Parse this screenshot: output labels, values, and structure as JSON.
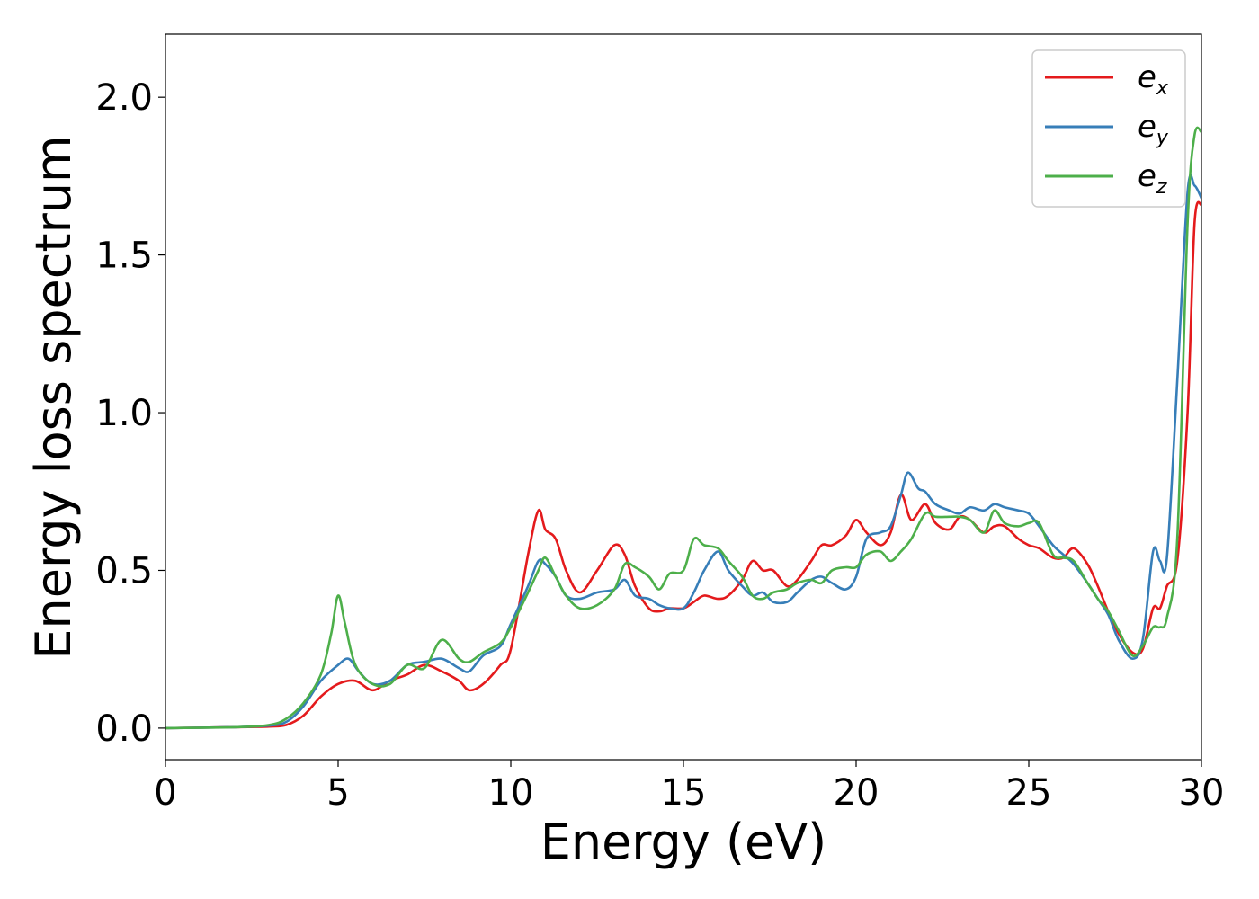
{
  "chart_data": {
    "type": "line",
    "title": "",
    "xlabel": "Energy (eV)",
    "ylabel": "Energy loss spectrum",
    "xlim": [
      0,
      30
    ],
    "ylim": [
      -0.1,
      2.2
    ],
    "xticks": [
      0,
      5,
      10,
      15,
      20,
      25,
      30
    ],
    "xtick_labels": [
      "0",
      "5",
      "10",
      "15",
      "20",
      "25",
      "30"
    ],
    "yticks": [
      0.0,
      0.5,
      1.0,
      1.5,
      2.0
    ],
    "ytick_labels": [
      "0.0",
      "0.5",
      "1.0",
      "1.5",
      "2.0"
    ],
    "grid": false,
    "legend_position": "top-right",
    "series": [
      {
        "name": "e_x",
        "label_main": "e",
        "label_sub": "x",
        "color": "#e41a1c",
        "x": [
          0,
          2,
          3,
          3.5,
          4,
          4.5,
          5,
          5.5,
          6,
          6.5,
          7,
          7.5,
          8,
          8.5,
          8.8,
          9.2,
          9.7,
          10,
          10.5,
          10.8,
          11,
          11.3,
          11.6,
          12,
          12.5,
          13,
          13.3,
          13.6,
          14,
          14.3,
          14.6,
          15,
          15.3,
          15.6,
          16,
          16.3,
          16.7,
          17,
          17.3,
          17.6,
          18,
          18.3,
          18.7,
          19,
          19.3,
          19.7,
          20,
          20.3,
          20.7,
          21,
          21.3,
          21.6,
          22,
          22.3,
          22.7,
          23,
          23.3,
          23.7,
          24,
          24.3,
          24.7,
          25,
          25.3,
          25.7,
          26,
          26.3,
          26.7,
          27,
          27.3,
          27.6,
          28,
          28.3,
          28.6,
          28.8,
          29,
          29.3,
          29.6,
          29.8,
          30
        ],
        "y": [
          0.0,
          0.003,
          0.005,
          0.01,
          0.04,
          0.1,
          0.14,
          0.15,
          0.12,
          0.15,
          0.17,
          0.2,
          0.18,
          0.15,
          0.12,
          0.14,
          0.2,
          0.25,
          0.55,
          0.69,
          0.63,
          0.6,
          0.5,
          0.43,
          0.5,
          0.58,
          0.55,
          0.45,
          0.38,
          0.37,
          0.38,
          0.38,
          0.4,
          0.42,
          0.41,
          0.42,
          0.47,
          0.53,
          0.5,
          0.5,
          0.45,
          0.47,
          0.53,
          0.58,
          0.58,
          0.61,
          0.66,
          0.62,
          0.58,
          0.62,
          0.74,
          0.66,
          0.71,
          0.65,
          0.63,
          0.67,
          0.66,
          0.62,
          0.64,
          0.64,
          0.6,
          0.58,
          0.57,
          0.54,
          0.54,
          0.57,
          0.52,
          0.45,
          0.37,
          0.3,
          0.24,
          0.25,
          0.38,
          0.38,
          0.45,
          0.53,
          1.0,
          1.6,
          1.66
        ]
      },
      {
        "name": "e_y",
        "label_main": "e",
        "label_sub": "y",
        "color": "#377eb8",
        "x": [
          0,
          2,
          3,
          3.5,
          4,
          4.5,
          5,
          5.3,
          5.6,
          6,
          6.5,
          7,
          7.5,
          8,
          8.5,
          8.8,
          9.2,
          9.7,
          10,
          10.5,
          10.8,
          11,
          11.3,
          11.6,
          12,
          12.5,
          13,
          13.3,
          13.6,
          14,
          14.3,
          14.6,
          15,
          15.3,
          15.6,
          16,
          16.3,
          16.7,
          17,
          17.3,
          17.6,
          18,
          18.3,
          18.7,
          19,
          19.3,
          19.7,
          20,
          20.3,
          20.7,
          21,
          21.3,
          21.5,
          21.8,
          22,
          22.3,
          22.7,
          23,
          23.3,
          23.7,
          24,
          24.3,
          24.7,
          25,
          25.3,
          25.7,
          26,
          26.3,
          26.7,
          27,
          27.3,
          27.6,
          28,
          28.3,
          28.6,
          28.8,
          29,
          29.3,
          29.6,
          29.8,
          30
        ],
        "y": [
          0.0,
          0.003,
          0.008,
          0.02,
          0.07,
          0.15,
          0.2,
          0.22,
          0.18,
          0.14,
          0.15,
          0.2,
          0.21,
          0.22,
          0.19,
          0.18,
          0.23,
          0.26,
          0.33,
          0.45,
          0.53,
          0.52,
          0.48,
          0.42,
          0.41,
          0.43,
          0.44,
          0.47,
          0.42,
          0.41,
          0.39,
          0.38,
          0.38,
          0.43,
          0.5,
          0.56,
          0.5,
          0.45,
          0.42,
          0.43,
          0.4,
          0.4,
          0.43,
          0.47,
          0.48,
          0.46,
          0.44,
          0.48,
          0.6,
          0.62,
          0.64,
          0.74,
          0.81,
          0.76,
          0.75,
          0.71,
          0.69,
          0.68,
          0.7,
          0.69,
          0.71,
          0.7,
          0.69,
          0.68,
          0.64,
          0.58,
          0.55,
          0.52,
          0.46,
          0.41,
          0.36,
          0.28,
          0.22,
          0.28,
          0.56,
          0.53,
          0.54,
          1.1,
          1.7,
          1.72,
          1.68
        ]
      },
      {
        "name": "e_z",
        "label_main": "e",
        "label_sub": "z",
        "color": "#4daf4a",
        "x": [
          0,
          2,
          3,
          3.5,
          4,
          4.5,
          4.8,
          5,
          5.2,
          5.5,
          6,
          6.5,
          7,
          7.5,
          8,
          8.5,
          8.8,
          9.2,
          9.7,
          10,
          10.5,
          10.8,
          11,
          11.3,
          11.6,
          12,
          12.5,
          13,
          13.3,
          13.6,
          14,
          14.3,
          14.6,
          15,
          15.3,
          15.6,
          16,
          16.3,
          16.7,
          17,
          17.3,
          17.6,
          18,
          18.3,
          18.7,
          19,
          19.3,
          19.7,
          20,
          20.3,
          20.7,
          21,
          21.3,
          21.6,
          22,
          22.3,
          22.7,
          23,
          23.3,
          23.7,
          24,
          24.3,
          24.7,
          25,
          25.3,
          25.7,
          26,
          26.3,
          26.7,
          27,
          27.3,
          27.6,
          28,
          28.3,
          28.6,
          28.8,
          29,
          29.3,
          29.6,
          29.8,
          30
        ],
        "y": [
          0.0,
          0.003,
          0.01,
          0.03,
          0.08,
          0.17,
          0.3,
          0.42,
          0.33,
          0.2,
          0.14,
          0.14,
          0.2,
          0.19,
          0.28,
          0.22,
          0.21,
          0.24,
          0.27,
          0.32,
          0.43,
          0.5,
          0.54,
          0.48,
          0.42,
          0.38,
          0.39,
          0.44,
          0.52,
          0.51,
          0.48,
          0.44,
          0.49,
          0.5,
          0.6,
          0.58,
          0.57,
          0.53,
          0.48,
          0.42,
          0.41,
          0.43,
          0.44,
          0.46,
          0.47,
          0.46,
          0.5,
          0.51,
          0.51,
          0.55,
          0.56,
          0.53,
          0.56,
          0.6,
          0.68,
          0.67,
          0.67,
          0.67,
          0.66,
          0.62,
          0.69,
          0.65,
          0.64,
          0.65,
          0.65,
          0.55,
          0.54,
          0.53,
          0.46,
          0.41,
          0.37,
          0.31,
          0.23,
          0.26,
          0.32,
          0.32,
          0.35,
          0.6,
          1.6,
          1.88,
          1.89
        ]
      }
    ]
  }
}
